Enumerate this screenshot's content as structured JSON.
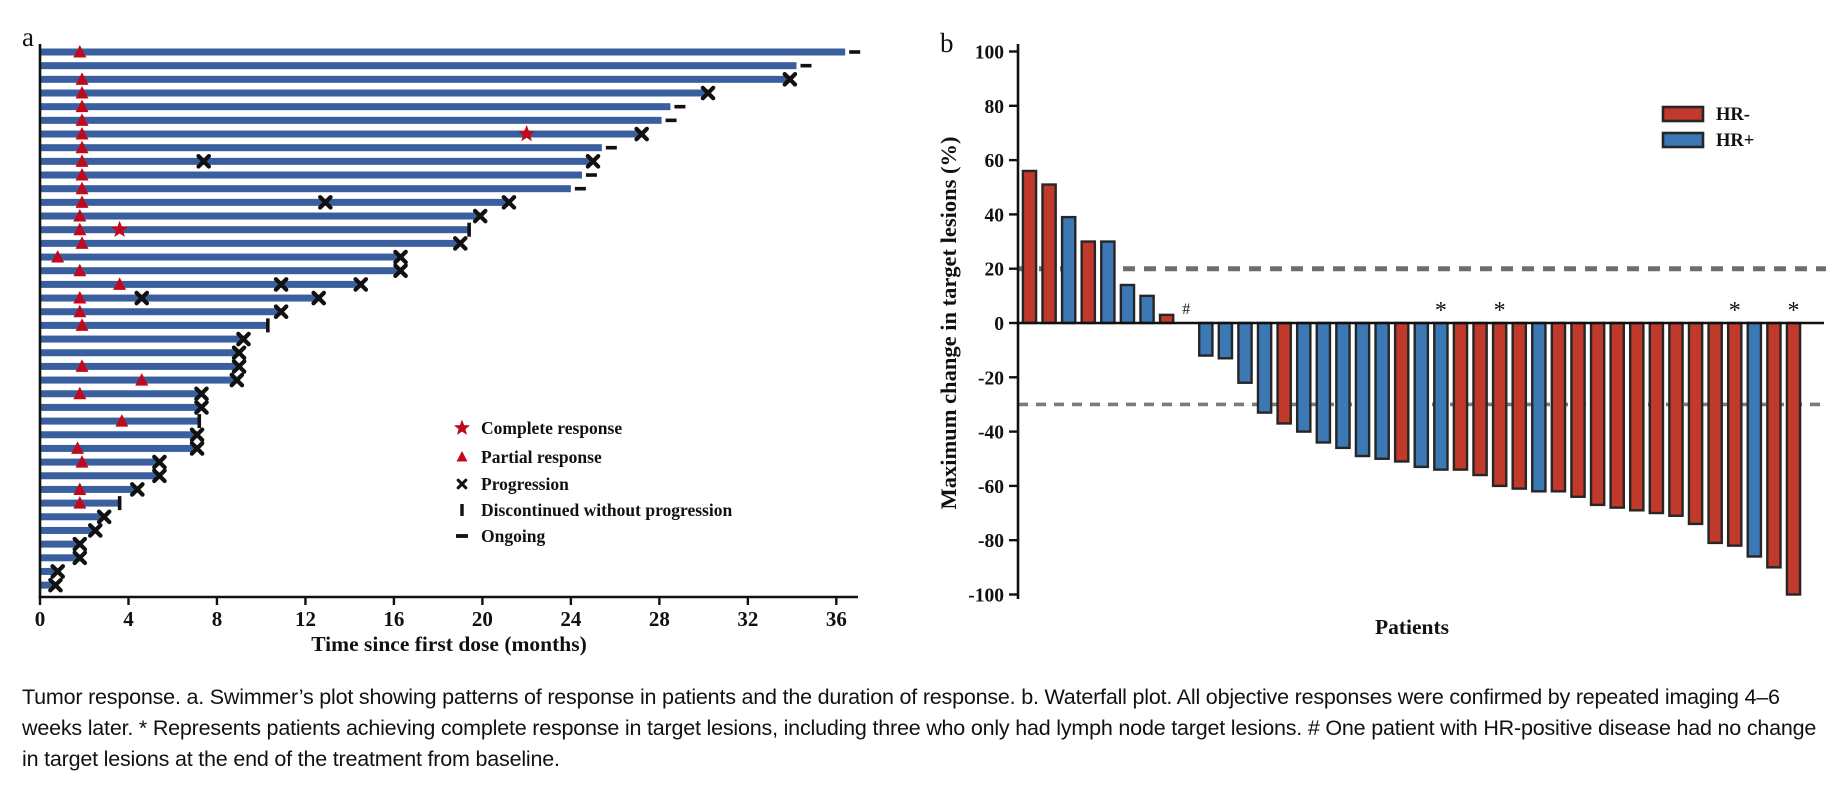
{
  "figure": {
    "panel_a_label": "a",
    "panel_b_label": "b",
    "caption": "Tumor response. a. Swimmer’s plot showing patterns of response in patients and the duration of response. b. Waterfall plot. All objective responses were confirmed by repeated imaging 4–6 weeks later. * Represents patients achieving complete response in target lesions, including three who only had lymph node target lesions. # One patient with HR-positive disease had no change in target lesions at the end of the treatment from baseline."
  },
  "chart_data": [
    {
      "id": "swimmer",
      "type": "bar",
      "orientation": "horizontal",
      "xlabel": "Time since first dose (months)",
      "xlim": [
        0,
        37
      ],
      "xticks": [
        0,
        4,
        8,
        12,
        16,
        20,
        24,
        28,
        32,
        36
      ],
      "bar_color": "#3a5f9f",
      "marker_red": "#bf0a1e",
      "marker_black": "#111111",
      "legend": [
        {
          "marker": "star",
          "label": "Complete response"
        },
        {
          "marker": "triangle",
          "label": "Partial response"
        },
        {
          "marker": "x",
          "label": "Progression"
        },
        {
          "marker": "tick",
          "label": "Discontinued without progression"
        },
        {
          "marker": "dash",
          "label": "Ongoing"
        }
      ],
      "patients": [
        {
          "duration": 36.4,
          "partial_response": 1.8,
          "complete_response": null,
          "progression": [],
          "discontinued": null,
          "ongoing": true
        },
        {
          "duration": 34.2,
          "partial_response": null,
          "complete_response": null,
          "progression": [],
          "discontinued": null,
          "ongoing": true
        },
        {
          "duration": 33.9,
          "partial_response": 1.9,
          "complete_response": null,
          "progression": [
            33.9
          ],
          "discontinued": null,
          "ongoing": false
        },
        {
          "duration": 30.2,
          "partial_response": 1.9,
          "complete_response": null,
          "progression": [
            30.2
          ],
          "discontinued": null,
          "ongoing": false
        },
        {
          "duration": 28.5,
          "partial_response": 1.9,
          "complete_response": null,
          "progression": [],
          "discontinued": null,
          "ongoing": true
        },
        {
          "duration": 28.1,
          "partial_response": 1.9,
          "complete_response": null,
          "progression": [],
          "discontinued": null,
          "ongoing": true
        },
        {
          "duration": 27.2,
          "partial_response": 1.9,
          "complete_response": 22.0,
          "progression": [
            27.2
          ],
          "discontinued": null,
          "ongoing": false
        },
        {
          "duration": 25.4,
          "partial_response": 1.9,
          "complete_response": null,
          "progression": [],
          "discontinued": null,
          "ongoing": true
        },
        {
          "duration": 25.0,
          "partial_response": 1.9,
          "complete_response": null,
          "progression": [
            7.4,
            25.0
          ],
          "discontinued": null,
          "ongoing": false
        },
        {
          "duration": 24.5,
          "partial_response": 1.9,
          "complete_response": null,
          "progression": [],
          "discontinued": null,
          "ongoing": true
        },
        {
          "duration": 24.0,
          "partial_response": 1.9,
          "complete_response": null,
          "progression": [],
          "discontinued": null,
          "ongoing": true
        },
        {
          "duration": 21.2,
          "partial_response": 1.9,
          "complete_response": null,
          "progression": [
            12.9,
            21.2
          ],
          "discontinued": null,
          "ongoing": false
        },
        {
          "duration": 19.9,
          "partial_response": 1.8,
          "complete_response": null,
          "progression": [
            19.9
          ],
          "discontinued": null,
          "ongoing": false
        },
        {
          "duration": 19.4,
          "partial_response": 1.8,
          "complete_response": 3.6,
          "progression": [],
          "discontinued": 19.4,
          "ongoing": false
        },
        {
          "duration": 19.0,
          "partial_response": 1.9,
          "complete_response": null,
          "progression": [
            19.0
          ],
          "discontinued": null,
          "ongoing": false
        },
        {
          "duration": 16.3,
          "partial_response": 0.8,
          "complete_response": null,
          "progression": [
            16.3
          ],
          "discontinued": null,
          "ongoing": false
        },
        {
          "duration": 16.3,
          "partial_response": 1.8,
          "complete_response": null,
          "progression": [
            16.3
          ],
          "discontinued": null,
          "ongoing": false
        },
        {
          "duration": 14.5,
          "partial_response": 3.6,
          "complete_response": null,
          "progression": [
            10.9,
            14.5
          ],
          "discontinued": null,
          "ongoing": false
        },
        {
          "duration": 12.6,
          "partial_response": 1.8,
          "complete_response": null,
          "progression": [
            4.6,
            12.6
          ],
          "discontinued": null,
          "ongoing": false
        },
        {
          "duration": 10.9,
          "partial_response": 1.8,
          "complete_response": null,
          "progression": [
            10.9
          ],
          "discontinued": null,
          "ongoing": false
        },
        {
          "duration": 10.3,
          "partial_response": 1.9,
          "complete_response": null,
          "progression": [],
          "discontinued": 10.3,
          "ongoing": false
        },
        {
          "duration": 9.2,
          "partial_response": null,
          "complete_response": null,
          "progression": [
            9.2
          ],
          "discontinued": null,
          "ongoing": false
        },
        {
          "duration": 9.0,
          "partial_response": null,
          "complete_response": null,
          "progression": [
            9.0
          ],
          "discontinued": null,
          "ongoing": false
        },
        {
          "duration": 9.0,
          "partial_response": 1.9,
          "complete_response": null,
          "progression": [
            9.0
          ],
          "discontinued": null,
          "ongoing": false
        },
        {
          "duration": 8.9,
          "partial_response": 4.6,
          "complete_response": null,
          "progression": [
            8.9
          ],
          "discontinued": null,
          "ongoing": false
        },
        {
          "duration": 7.3,
          "partial_response": 1.8,
          "complete_response": null,
          "progression": [
            7.3
          ],
          "discontinued": null,
          "ongoing": false
        },
        {
          "duration": 7.3,
          "partial_response": null,
          "complete_response": null,
          "progression": [
            7.3
          ],
          "discontinued": null,
          "ongoing": false
        },
        {
          "duration": 7.2,
          "partial_response": 3.7,
          "complete_response": null,
          "progression": [],
          "discontinued": 7.2,
          "ongoing": false
        },
        {
          "duration": 7.1,
          "partial_response": null,
          "complete_response": null,
          "progression": [
            7.1
          ],
          "discontinued": null,
          "ongoing": false
        },
        {
          "duration": 7.1,
          "partial_response": 1.7,
          "complete_response": null,
          "progression": [
            7.1
          ],
          "discontinued": null,
          "ongoing": false
        },
        {
          "duration": 5.4,
          "partial_response": 1.9,
          "complete_response": null,
          "progression": [
            5.4
          ],
          "discontinued": null,
          "ongoing": false
        },
        {
          "duration": 5.4,
          "partial_response": null,
          "complete_response": null,
          "progression": [
            5.4
          ],
          "discontinued": null,
          "ongoing": false
        },
        {
          "duration": 4.4,
          "partial_response": 1.8,
          "complete_response": null,
          "progression": [
            4.4
          ],
          "discontinued": null,
          "ongoing": false
        },
        {
          "duration": 3.6,
          "partial_response": 1.8,
          "complete_response": null,
          "progression": [],
          "discontinued": 3.6,
          "ongoing": false
        },
        {
          "duration": 2.9,
          "partial_response": null,
          "complete_response": null,
          "progression": [
            2.9
          ],
          "discontinued": null,
          "ongoing": false
        },
        {
          "duration": 2.5,
          "partial_response": null,
          "complete_response": null,
          "progression": [
            2.5
          ],
          "discontinued": null,
          "ongoing": false
        },
        {
          "duration": 1.8,
          "partial_response": null,
          "complete_response": null,
          "progression": [
            1.8
          ],
          "discontinued": null,
          "ongoing": false
        },
        {
          "duration": 1.8,
          "partial_response": null,
          "complete_response": null,
          "progression": [
            1.8
          ],
          "discontinued": null,
          "ongoing": false
        },
        {
          "duration": 0.8,
          "partial_response": null,
          "complete_response": null,
          "progression": [
            0.8
          ],
          "discontinued": null,
          "ongoing": false
        },
        {
          "duration": 0.7,
          "partial_response": null,
          "complete_response": null,
          "progression": [
            0.7
          ],
          "discontinued": null,
          "ongoing": false
        }
      ]
    },
    {
      "id": "waterfall",
      "type": "bar",
      "ylabel": "Maximum change in target lesions (%)",
      "xlabel": "Patients",
      "ylim": [
        -100,
        100
      ],
      "yticks": [
        100,
        80,
        60,
        40,
        20,
        0,
        -20,
        -40,
        -60,
        -80,
        -100
      ],
      "reference_lines": [
        20,
        -30
      ],
      "legend": [
        {
          "label": "HR-",
          "color": "#c0392b"
        },
        {
          "label": "HR+",
          "color": "#3c78b4"
        }
      ],
      "group_colors": {
        "HR-": "#c0392b",
        "HR+": "#3c78b4"
      },
      "values": [
        56,
        51,
        39,
        30,
        30,
        14,
        10,
        3,
        0,
        -12,
        -13,
        -22,
        -33,
        -37,
        -40,
        -44,
        -46,
        -49,
        -50,
        -51,
        -53,
        -54,
        -54,
        -56,
        -60,
        -61,
        -62,
        -62,
        -64,
        -67,
        -68,
        -69,
        -70,
        -71,
        -74,
        -81,
        -82,
        -86,
        -90,
        -100
      ],
      "groups": [
        "HR-",
        "HR-",
        "HR+",
        "HR-",
        "HR+",
        "HR+",
        "HR+",
        "HR-",
        "HR+",
        "HR+",
        "HR+",
        "HR+",
        "HR+",
        "HR-",
        "HR+",
        "HR+",
        "HR+",
        "HR+",
        "HR+",
        "HR-",
        "HR+",
        "HR+",
        "HR-",
        "HR-",
        "HR-",
        "HR-",
        "HR+",
        "HR-",
        "HR-",
        "HR-",
        "HR-",
        "HR-",
        "HR-",
        "HR-",
        "HR-",
        "HR-",
        "HR-",
        "HR+",
        "HR-",
        "HR-"
      ],
      "annotations": {
        "hash_symbol": "#",
        "hash_index": 8,
        "star_symbol": "*",
        "star_indices": [
          21,
          24,
          36,
          39
        ]
      }
    }
  ]
}
